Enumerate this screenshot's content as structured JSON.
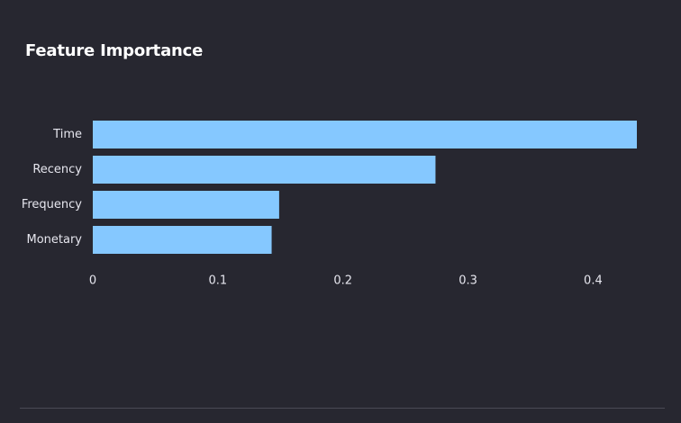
{
  "chart_data": {
    "type": "bar",
    "orientation": "horizontal",
    "title": "Feature Importance",
    "xlabel": "",
    "ylabel": "",
    "categories": [
      "Time",
      "Recency",
      "Frequency",
      "Monetary"
    ],
    "values": [
      0.435,
      0.274,
      0.149,
      0.143
    ],
    "xlim": [
      0,
      0.435
    ],
    "xticks": [
      0,
      0.1,
      0.2,
      0.3,
      0.4
    ],
    "xtick_labels": [
      "0",
      "0.1",
      "0.2",
      "0.3",
      "0.4"
    ],
    "grid": false,
    "bar_color": "#85c8ff"
  },
  "colors": {
    "background": "#272730",
    "bar": "#85c8ff",
    "text": "#e6e6ee",
    "title": "#ffffff"
  }
}
